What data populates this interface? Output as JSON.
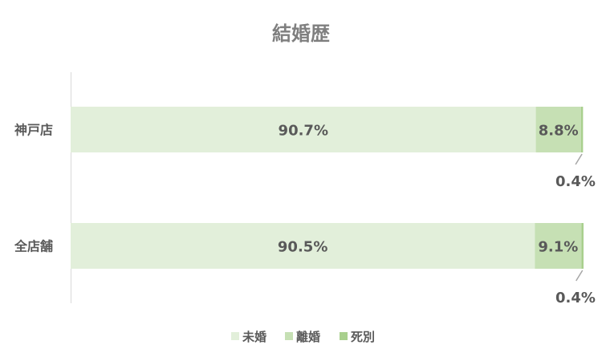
{
  "chart_data": {
    "type": "bar",
    "orientation": "horizontal",
    "stacked": "percent",
    "title": "結婚歴",
    "categories": [
      "神戸店",
      "全店舗"
    ],
    "series": [
      {
        "name": "未婚",
        "values": [
          90.7,
          90.5
        ],
        "labels": [
          "90.7%",
          "90.5%"
        ],
        "color": "#E2EFDA"
      },
      {
        "name": "離婚",
        "values": [
          8.8,
          9.1
        ],
        "labels": [
          "8.8%",
          "9.1%"
        ],
        "color": "#C6E0B4"
      },
      {
        "name": "死別",
        "values": [
          0.4,
          0.4
        ],
        "labels": [
          "0.4%",
          "0.4%"
        ],
        "color": "#A9D08E"
      }
    ],
    "xlim": [
      0,
      100
    ],
    "grid": false,
    "legend": "bottom"
  },
  "colors": {
    "text": "#595959",
    "title": "#7F7F7F",
    "axis": "#D9D9D9"
  }
}
